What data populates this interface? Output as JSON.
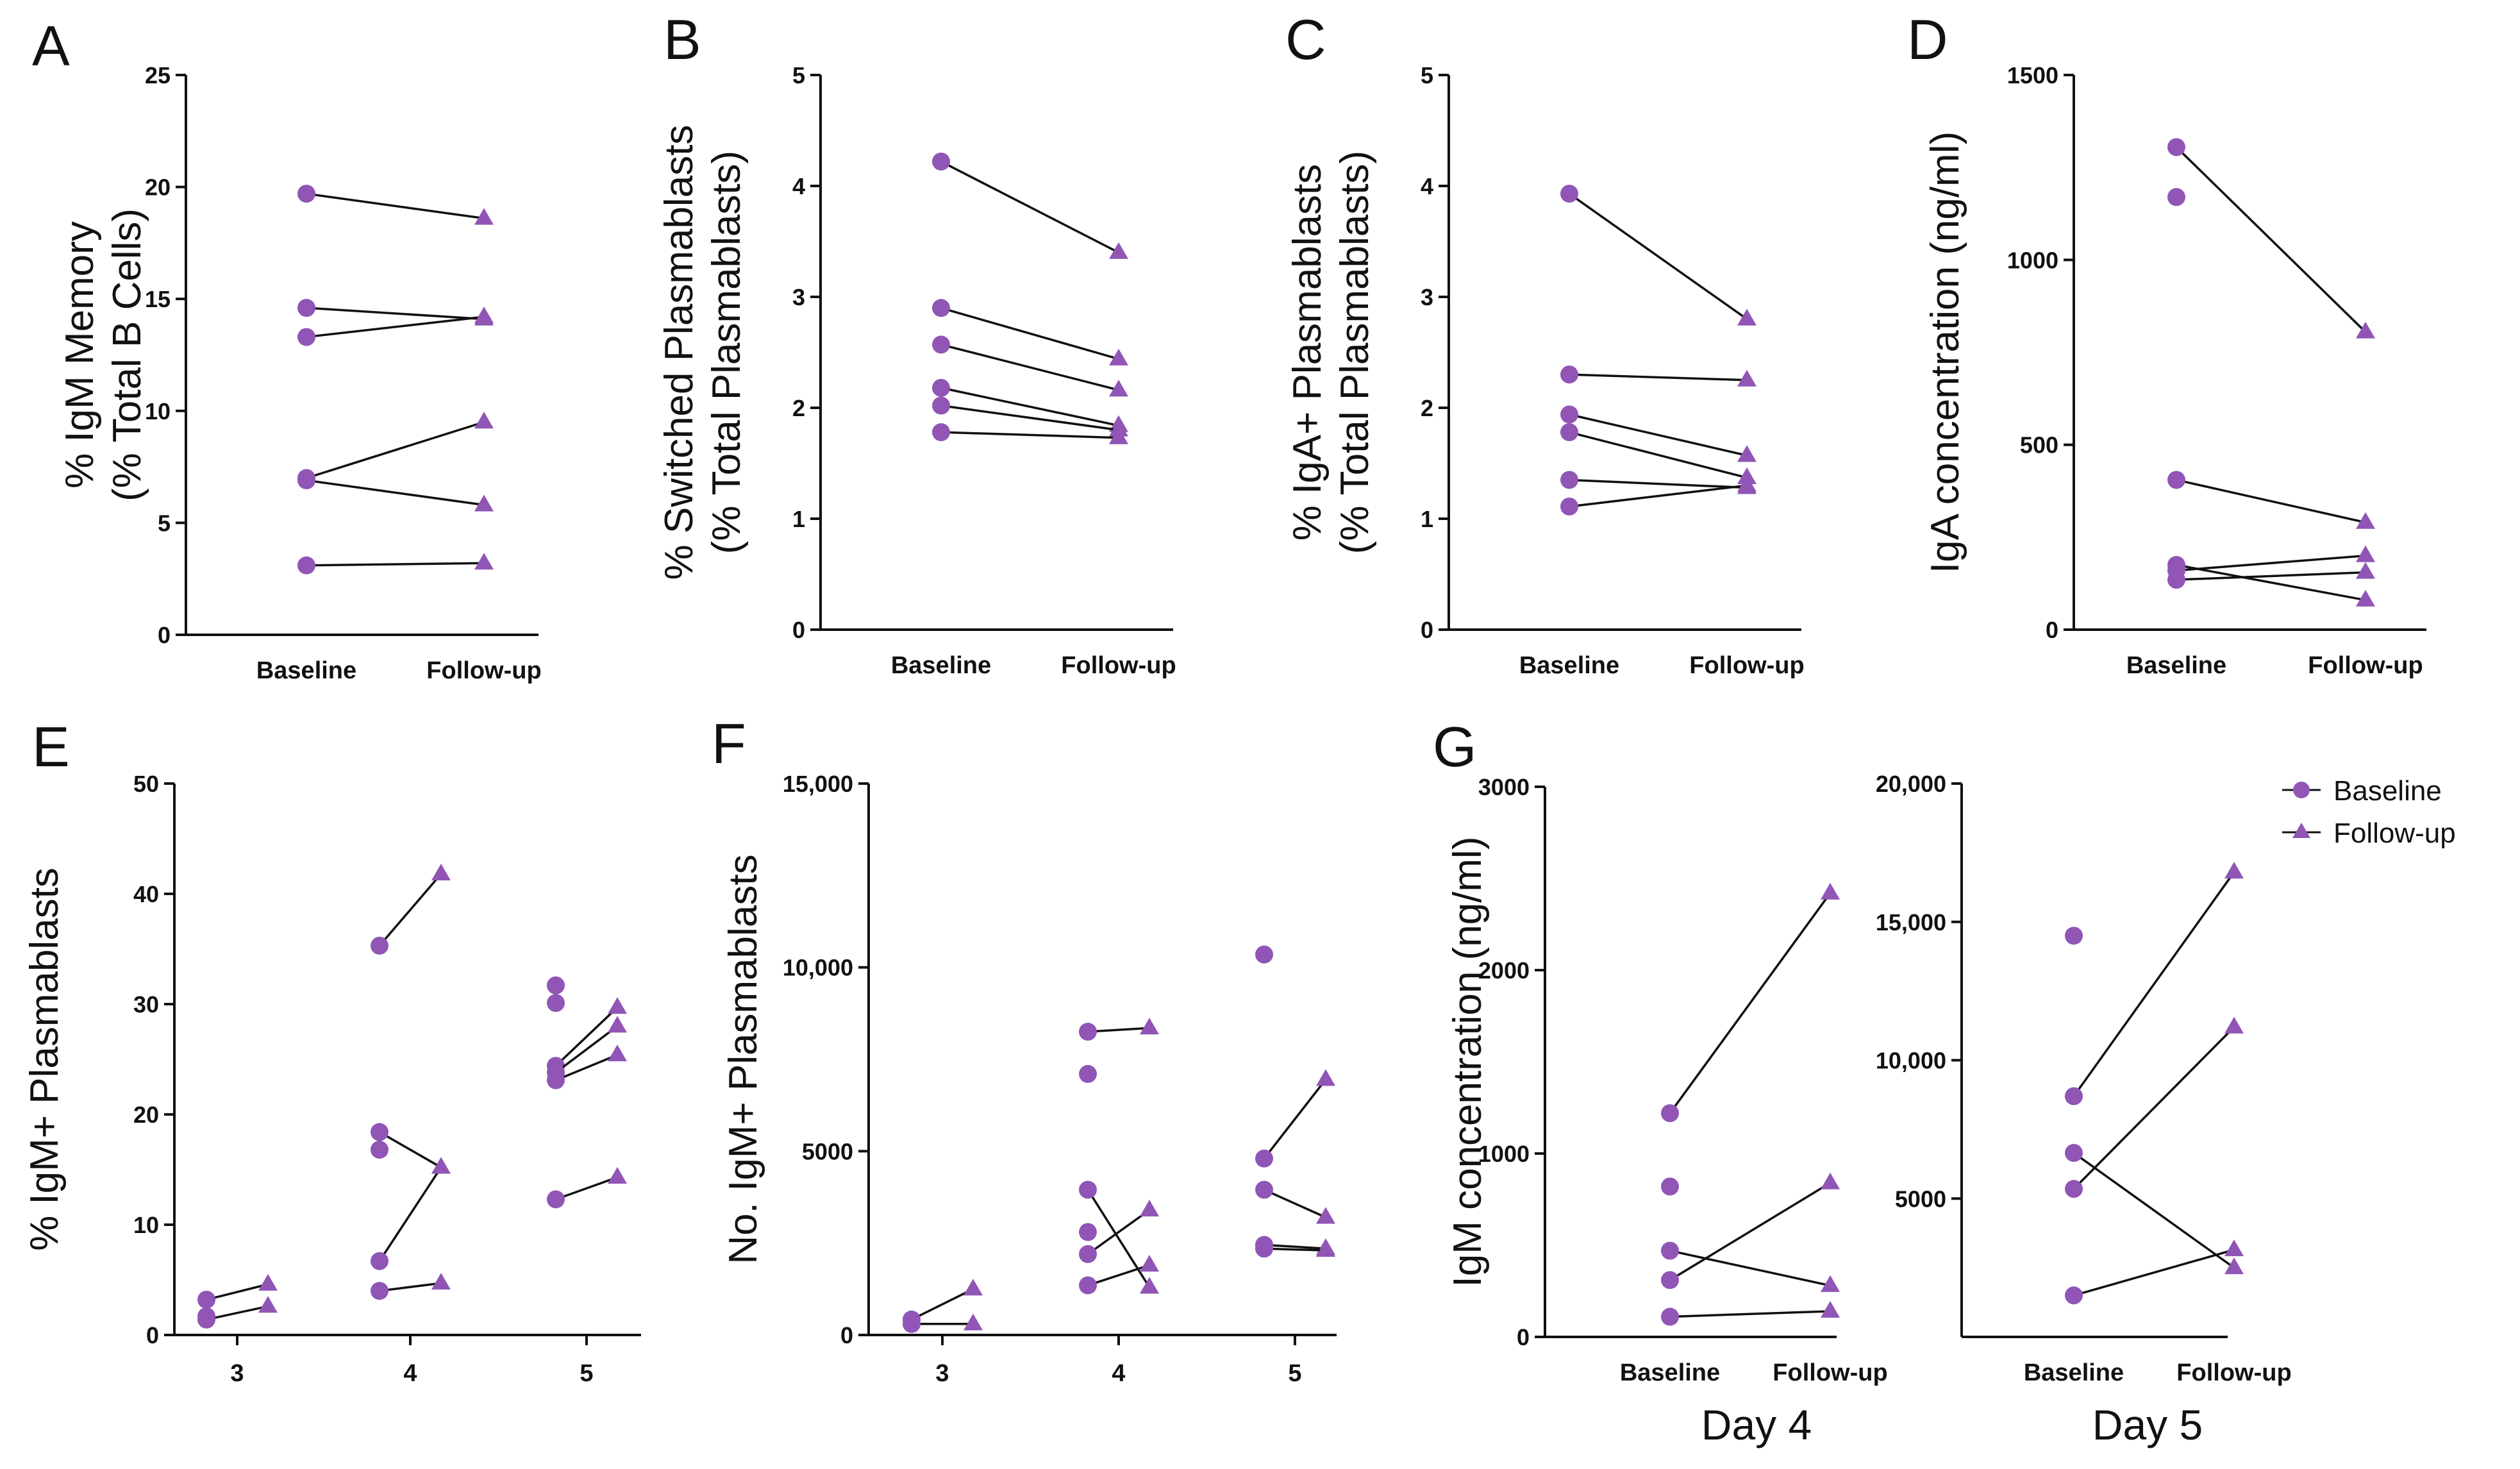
{
  "colors": {
    "marker": "#9055b5",
    "axis": "#111111",
    "line": "#111111"
  },
  "chart_data": [
    {
      "id": "A",
      "type": "line",
      "panel_label": "A",
      "ylabel": [
        "% IgM Memory",
        "(% Total B Cells)"
      ],
      "categories": [
        "Baseline",
        "Follow-up"
      ],
      "ylim": [
        0,
        25
      ],
      "yticks": [
        0,
        5,
        10,
        15,
        20,
        25
      ],
      "ytick_labels": [
        "0",
        "5",
        "10",
        "15",
        "20",
        "25"
      ],
      "pairs": [
        [
          19.7,
          18.6
        ],
        [
          14.6,
          14.1
        ],
        [
          13.3,
          14.2
        ],
        [
          7.0,
          9.5
        ],
        [
          6.9,
          5.8
        ],
        [
          3.1,
          3.2
        ]
      ]
    },
    {
      "id": "B",
      "type": "line",
      "panel_label": "B",
      "ylabel": [
        "% Switched Plasmablasts",
        "(% Total Plasmablasts)"
      ],
      "categories": [
        "Baseline",
        "Follow-up"
      ],
      "ylim": [
        0,
        5
      ],
      "yticks": [
        0,
        1,
        2,
        3,
        4,
        5
      ],
      "ytick_labels": [
        "0",
        "1",
        "2",
        "3",
        "4",
        "5"
      ],
      "pairs": [
        [
          4.22,
          3.4
        ],
        [
          2.9,
          2.44
        ],
        [
          2.57,
          2.16
        ],
        [
          2.18,
          1.84
        ],
        [
          2.02,
          1.8
        ],
        [
          1.78,
          1.73
        ]
      ]
    },
    {
      "id": "C",
      "type": "line",
      "panel_label": "C",
      "ylabel": [
        "% IgA+ Plasmablasts",
        "(% Total Plasmablasts)"
      ],
      "categories": [
        "Baseline",
        "Follow-up"
      ],
      "ylim": [
        0,
        5
      ],
      "yticks": [
        0,
        1,
        2,
        3,
        4,
        5
      ],
      "ytick_labels": [
        "0",
        "1",
        "2",
        "3",
        "4",
        "5"
      ],
      "pairs": [
        [
          3.93,
          2.8
        ],
        [
          2.3,
          2.25
        ],
        [
          1.94,
          1.57
        ],
        [
          1.78,
          1.37
        ],
        [
          1.35,
          1.28
        ],
        [
          1.11,
          1.3
        ]
      ]
    },
    {
      "id": "D",
      "type": "line",
      "panel_label": "D",
      "ylabel": [
        "IgA concentration (ng/ml)"
      ],
      "categories": [
        "Baseline",
        "Follow-up"
      ],
      "ylim": [
        0,
        1500
      ],
      "yticks": [
        0,
        500,
        1000,
        1500
      ],
      "ytick_labels": [
        "0",
        "500",
        "1000",
        "1500"
      ],
      "pairs": [
        [
          1305,
          805
        ],
        [
          405,
          290
        ],
        [
          175,
          80
        ],
        [
          160,
          200
        ],
        [
          135,
          155
        ]
      ],
      "unpaired_baseline": [
        1170
      ]
    },
    {
      "id": "E",
      "type": "line",
      "panel_label": "E",
      "ylabel": [
        "% IgM+ Plasmablasts"
      ],
      "categories": [
        "3",
        "4",
        "5"
      ],
      "ylim": [
        0,
        50
      ],
      "yticks": [
        0,
        10,
        20,
        30,
        40,
        50
      ],
      "ytick_labels": [
        "0",
        "10",
        "20",
        "30",
        "40",
        "50"
      ],
      "groups": [
        {
          "pairs": [
            [
              3.2,
              4.6
            ],
            [
              1.4,
              2.6
            ]
          ],
          "unpaired_baseline": [
            1.7
          ]
        },
        {
          "pairs": [
            [
              35.3,
              41.8
            ],
            [
              18.4,
              15.2
            ],
            [
              6.7,
              15.2
            ],
            [
              4.0,
              4.7
            ]
          ],
          "unpaired_baseline": [
            16.8
          ]
        },
        {
          "pairs": [
            [
              24.4,
              29.7
            ],
            [
              23.8,
              28.0
            ],
            [
              23.1,
              25.4
            ],
            [
              12.3,
              14.3
            ]
          ],
          "unpaired_baseline": [
            31.7,
            30.1
          ]
        }
      ]
    },
    {
      "id": "F",
      "type": "line",
      "panel_label": "F",
      "ylabel": [
        "No. IgM+ Plasmablasts"
      ],
      "categories": [
        "3",
        "4",
        "5"
      ],
      "ylim": [
        0,
        15000
      ],
      "yticks": [
        0,
        5000,
        10000,
        15000
      ],
      "ytick_labels": [
        "0",
        "5000",
        "10,000",
        "15,000"
      ],
      "groups": [
        {
          "pairs": [
            [
              420,
              1250
            ],
            [
              300,
              300
            ]
          ],
          "unpaired_baseline": []
        },
        {
          "pairs": [
            [
              8250,
              8350
            ],
            [
              3950,
              1300
            ],
            [
              2200,
              3400
            ],
            [
              1350,
              1900
            ]
          ],
          "unpaired_baseline": [
            7100,
            2800
          ]
        },
        {
          "pairs": [
            [
              4800,
              6950
            ],
            [
              3950,
              3200
            ],
            [
              2450,
              2350
            ],
            [
              2350,
              2300
            ]
          ],
          "unpaired_baseline": [
            10350
          ]
        }
      ]
    },
    {
      "id": "G1",
      "type": "line",
      "panel_label": "G",
      "sublabel": "Day 4",
      "ylabel": [
        "IgM concentration (ng/ml)"
      ],
      "categories": [
        "Baseline",
        "Follow-up"
      ],
      "ylim": [
        0,
        3000
      ],
      "yticks": [
        0,
        1000,
        2000,
        3000
      ],
      "ytick_labels": [
        "0",
        "1000",
        "2000",
        "3000"
      ],
      "pairs": [
        [
          1220,
          2420
        ],
        [
          470,
          280
        ],
        [
          310,
          840
        ],
        [
          110,
          140
        ]
      ],
      "unpaired_baseline": [
        820
      ]
    },
    {
      "id": "G2",
      "type": "line",
      "sublabel": "Day 5",
      "categories": [
        "Baseline",
        "Follow-up"
      ],
      "ylim": [
        0,
        20000
      ],
      "yticks": [
        5000,
        10000,
        15000,
        20000
      ],
      "ytick_labels": [
        "5000",
        "10,000",
        "15,000",
        "20,000"
      ],
      "pairs": [
        [
          8700,
          16800
        ],
        [
          6650,
          2500
        ],
        [
          5350,
          11200
        ],
        [
          1500,
          3150
        ]
      ],
      "unpaired_baseline": [
        14500
      ]
    }
  ],
  "legend": {
    "items": [
      {
        "label": "Baseline",
        "marker": "circle"
      },
      {
        "label": "Follow-up",
        "marker": "triangle"
      }
    ]
  }
}
